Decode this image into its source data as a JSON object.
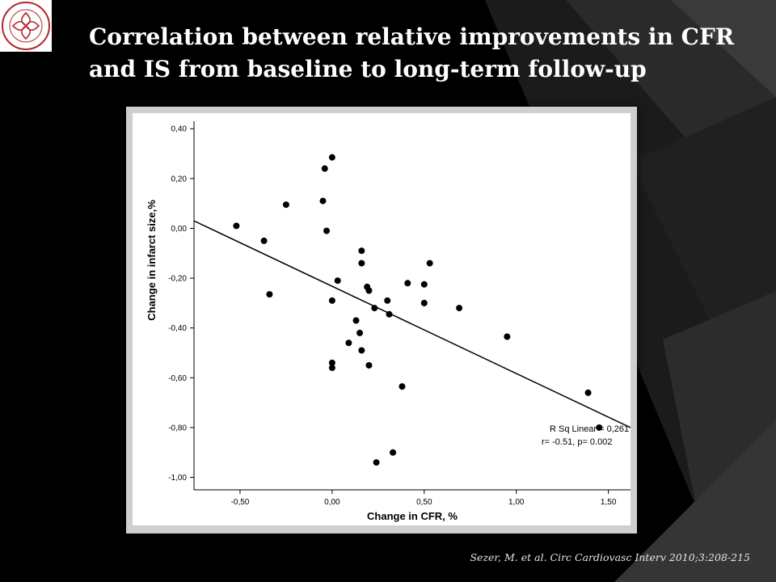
{
  "slide": {
    "title": "Correlation between relative improvements in CFR\nand IS from baseline to long-term follow-up",
    "citation": "Sezer, M. et al. Circ Cardiovasc Interv 2010;3:208-215",
    "logo_icon": "istanbul-university-istanbul-medical-faculty-seal",
    "logo_text": "İSTANBUL ÜNİVERSİTESİ · İSTANBUL TIP FAKÜLTESİ"
  },
  "chart_data": {
    "type": "scatter",
    "xlabel": "Change in CFR, %",
    "ylabel": "Change in infarct size,%",
    "xlim": [
      -0.75,
      1.62
    ],
    "ylim": [
      -1.05,
      0.43
    ],
    "x_ticks": [
      -0.5,
      0.0,
      0.5,
      1.0,
      1.5
    ],
    "x_tick_labels": [
      "-0,50",
      "0,00",
      "0,50",
      "1,00",
      "1,50"
    ],
    "y_ticks": [
      0.4,
      0.2,
      0.0,
      -0.2,
      -0.4,
      -0.6,
      -0.8,
      -1.0
    ],
    "y_tick_labels": [
      "0,40",
      "0,20",
      "0,00",
      "-0,20",
      "-0,40",
      "-0,60",
      "-0,80",
      "-1,00"
    ],
    "grid": false,
    "point_color": "#000000",
    "points": [
      {
        "x": -0.52,
        "y": 0.01
      },
      {
        "x": -0.37,
        "y": -0.05
      },
      {
        "x": -0.34,
        "y": -0.265
      },
      {
        "x": -0.25,
        "y": 0.095
      },
      {
        "x": -0.05,
        "y": 0.11
      },
      {
        "x": -0.04,
        "y": 0.24
      },
      {
        "x": -0.03,
        "y": -0.01
      },
      {
        "x": 0.0,
        "y": 0.285
      },
      {
        "x": 0.0,
        "y": -0.29
      },
      {
        "x": 0.0,
        "y": -0.54
      },
      {
        "x": 0.0,
        "y": -0.56
      },
      {
        "x": 0.03,
        "y": -0.21
      },
      {
        "x": 0.09,
        "y": -0.46
      },
      {
        "x": 0.13,
        "y": -0.37
      },
      {
        "x": 0.15,
        "y": -0.42
      },
      {
        "x": 0.16,
        "y": -0.09
      },
      {
        "x": 0.16,
        "y": -0.14
      },
      {
        "x": 0.16,
        "y": -0.49
      },
      {
        "x": 0.19,
        "y": -0.235
      },
      {
        "x": 0.2,
        "y": -0.25
      },
      {
        "x": 0.2,
        "y": -0.55
      },
      {
        "x": 0.23,
        "y": -0.32
      },
      {
        "x": 0.24,
        "y": -0.94
      },
      {
        "x": 0.3,
        "y": -0.29
      },
      {
        "x": 0.31,
        "y": -0.345
      },
      {
        "x": 0.33,
        "y": -0.9
      },
      {
        "x": 0.38,
        "y": -0.635
      },
      {
        "x": 0.41,
        "y": -0.22
      },
      {
        "x": 0.5,
        "y": -0.225
      },
      {
        "x": 0.5,
        "y": -0.3
      },
      {
        "x": 0.53,
        "y": -0.14
      },
      {
        "x": 0.69,
        "y": -0.32
      },
      {
        "x": 0.95,
        "y": -0.435
      },
      {
        "x": 1.39,
        "y": -0.66
      },
      {
        "x": 1.45,
        "y": -0.8
      }
    ],
    "fit_line": {
      "x1": -0.75,
      "y1": 0.03,
      "x2": 1.62,
      "y2": -0.8
    },
    "annotations": [
      "R Sq Linear = 0,261",
      "r= -0.51, p= 0.002"
    ]
  }
}
